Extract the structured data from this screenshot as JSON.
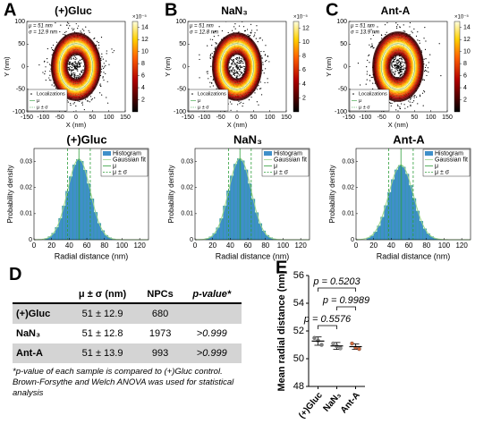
{
  "chart_data": [
    {
      "type": "heatmap",
      "panel_label": "A",
      "title": "(+)Gluc",
      "annotations": [
        "μ = 51 nm",
        "σ = 12.9 nm"
      ],
      "ring": {
        "mu": 51,
        "sigma": 12.9
      },
      "xlabel": "X (nm)",
      "ylabel": "Y (nm)",
      "xlim": [
        -150,
        150
      ],
      "xticks": [
        -150,
        -100,
        -50,
        0,
        50,
        100,
        150
      ],
      "ylim": [
        -100,
        100
      ],
      "yticks": [
        -100,
        -50,
        0,
        50,
        100
      ],
      "colorbar": {
        "label": "×10⁻⁵",
        "lim": [
          0,
          15
        ],
        "ticks": [
          2,
          4,
          6,
          8,
          10,
          12,
          14
        ]
      },
      "legend": [
        "Localizations",
        "μ",
        "μ ± σ"
      ]
    },
    {
      "type": "heatmap",
      "panel_label": "B",
      "title": "NaN₃",
      "annotations": [
        "μ = 51 nm",
        "σ = 12.8 nm"
      ],
      "ring": {
        "mu": 51,
        "sigma": 12.8
      },
      "xlabel": "X (nm)",
      "ylabel": "Y (nm)",
      "xlim": [
        -150,
        150
      ],
      "xticks": [
        -150,
        -100,
        -50,
        0,
        50,
        100,
        150
      ],
      "ylim": [
        -100,
        100
      ],
      "yticks": [
        -100,
        -50,
        0,
        50,
        100
      ],
      "colorbar": {
        "label": "×10⁻⁵",
        "lim": [
          0,
          13
        ],
        "ticks": [
          2,
          4,
          6,
          8,
          10,
          12
        ]
      },
      "legend": [
        "Localizations",
        "μ",
        "μ ± σ"
      ]
    },
    {
      "type": "heatmap",
      "panel_label": "C",
      "title": "Ant-A",
      "annotations": [
        "μ = 51 nm",
        "σ = 13.9 nm"
      ],
      "ring": {
        "mu": 51,
        "sigma": 13.9
      },
      "xlabel": "X (nm)",
      "ylabel": "Y (nm)",
      "xlim": [
        -150,
        150
      ],
      "xticks": [
        -150,
        -100,
        -50,
        0,
        50,
        100,
        150
      ],
      "ylim": [
        -100,
        100
      ],
      "yticks": [
        -100,
        -50,
        0,
        50,
        100
      ],
      "colorbar": {
        "label": "×10⁻⁵",
        "lim": [
          0,
          15
        ],
        "ticks": [
          2,
          4,
          6,
          8,
          10,
          12,
          14
        ]
      },
      "legend": [
        "Localizations",
        "μ",
        "μ ± σ"
      ]
    },
    {
      "type": "histogram",
      "title": "(+)Gluc",
      "xlabel": "Radial distance (nm)",
      "ylabel": "Probability density",
      "bins": [
        12,
        16,
        20,
        24,
        28,
        32,
        36,
        40,
        44,
        48,
        52,
        56,
        60,
        64,
        68,
        72,
        76,
        80,
        84,
        88,
        92,
        96,
        100
      ],
      "counts": [
        0.0005,
        0.0012,
        0.0025,
        0.0047,
        0.0082,
        0.013,
        0.0186,
        0.0242,
        0.0287,
        0.0308,
        0.0301,
        0.0267,
        0.0215,
        0.0157,
        0.0105,
        0.0063,
        0.0035,
        0.0017,
        0.0008,
        0.0003,
        0.0001,
        0
      ],
      "color": "#3f8fc9",
      "fit": {
        "mu": 51,
        "sigma": 12.9
      },
      "xlim": [
        0,
        130
      ],
      "xticks": [
        0,
        20,
        40,
        60,
        80,
        100,
        120
      ],
      "ylim": [
        0,
        0.035
      ],
      "yticks": [
        0,
        0.01,
        0.02,
        0.03
      ],
      "legend": [
        "Histogram",
        "Gaussian fit",
        "μ",
        "μ ± σ"
      ],
      "legend_position": "upper right"
    },
    {
      "type": "histogram",
      "title": "NaN₃",
      "xlabel": "Radial distance (nm)",
      "ylabel": "Probability density",
      "bins": [
        12,
        16,
        20,
        24,
        28,
        32,
        36,
        40,
        44,
        48,
        52,
        56,
        60,
        64,
        68,
        72,
        76,
        80,
        84,
        88,
        92,
        96,
        100
      ],
      "counts": [
        0.0005,
        0.0011,
        0.0024,
        0.0046,
        0.0081,
        0.013,
        0.0188,
        0.0245,
        0.029,
        0.0311,
        0.0303,
        0.0268,
        0.0215,
        0.0156,
        0.0104,
        0.0062,
        0.0034,
        0.0017,
        0.0008,
        0.0003,
        0.0001,
        0
      ],
      "color": "#3f8fc9",
      "fit": {
        "mu": 51,
        "sigma": 12.8
      },
      "xlim": [
        0,
        130
      ],
      "xticks": [
        0,
        20,
        40,
        60,
        80,
        100,
        120
      ],
      "ylim": [
        0,
        0.035
      ],
      "yticks": [
        0,
        0.01,
        0.02,
        0.03
      ],
      "legend": [
        "Histogram",
        "Gaussian fit",
        "μ",
        "μ ± σ"
      ],
      "legend_position": "upper right"
    },
    {
      "type": "histogram",
      "title": "Ant-A",
      "xlabel": "Radial distance (nm)",
      "ylabel": "Probability density",
      "bins": [
        12,
        16,
        20,
        24,
        28,
        32,
        36,
        40,
        44,
        48,
        52,
        56,
        60,
        64,
        68,
        72,
        76,
        80,
        84,
        88,
        92,
        96,
        100
      ],
      "counts": [
        0.0007,
        0.0015,
        0.003,
        0.0053,
        0.0087,
        0.0131,
        0.0182,
        0.0231,
        0.0268,
        0.0285,
        0.0279,
        0.0252,
        0.0208,
        0.0158,
        0.011,
        0.0071,
        0.0042,
        0.0023,
        0.0012,
        0.0005,
        0.0002,
        0.0001
      ],
      "color": "#3f8fc9",
      "fit": {
        "mu": 51,
        "sigma": 13.9
      },
      "xlim": [
        0,
        130
      ],
      "xticks": [
        0,
        20,
        40,
        60,
        80,
        100,
        120
      ],
      "ylim": [
        0,
        0.035
      ],
      "yticks": [
        0,
        0.01,
        0.02,
        0.03
      ],
      "legend": [
        "Histogram",
        "Gaussian fit",
        "μ",
        "μ ± σ"
      ],
      "legend_position": "upper right"
    },
    {
      "type": "dot",
      "panel_label": "E",
      "ylabel": "Mean radial distance (nm)",
      "categories": [
        "(+)Gluc",
        "NaN₃",
        "Ant-A"
      ],
      "values": [
        51.27,
        50.92,
        50.87
      ],
      "errors": [
        0.3,
        0.25,
        0.2
      ],
      "points": [
        [
          51.5,
          51.3,
          51.0
        ],
        [
          51.1,
          50.9,
          50.75
        ],
        [
          51.1,
          50.8,
          50.7
        ]
      ],
      "colors": [
        "#7f7f7f",
        "#9a9a9a",
        "#d2693c"
      ],
      "ylim": [
        48,
        56
      ],
      "yticks": [
        48,
        50,
        52,
        54,
        56
      ],
      "comparisons": [
        {
          "label": "p = 0.5203",
          "groups": [
            "(+)Gluc",
            "Ant-A"
          ]
        },
        {
          "label": "p = 0.9989",
          "groups": [
            "NaN₃",
            "Ant-A"
          ]
        },
        {
          "label": "p = 0.5576",
          "groups": [
            "(+)Gluc",
            "NaN₃"
          ]
        }
      ]
    }
  ],
  "table": {
    "panel_label": "D",
    "columns": [
      "μ ± σ (nm)",
      "NPCs",
      "p-value*"
    ],
    "rows": [
      {
        "name": "(+)Gluc",
        "mean_sd": "51 ± 12.9",
        "npcs": 680
      },
      {
        "name": "NaN₃",
        "mean_sd": "51 ± 12.8",
        "npcs": 1973,
        "p": ">0.999"
      },
      {
        "name": "Ant-A",
        "mean_sd": "51 ± 13.9",
        "npcs": 993,
        "p": ">0.999"
      }
    ],
    "footnote": "*p-value of each sample is compared to (+)Gluc control. Brown-Forsythe and Welch ANOVA was used for statistical analysis"
  }
}
